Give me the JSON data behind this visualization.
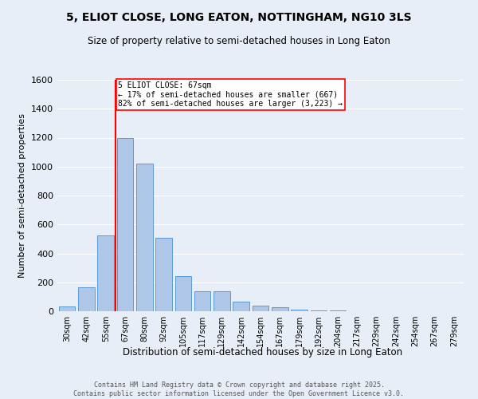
{
  "title": "5, ELIOT CLOSE, LONG EATON, NOTTINGHAM, NG10 3LS",
  "subtitle": "Size of property relative to semi-detached houses in Long Eaton",
  "xlabel": "Distribution of semi-detached houses by size in Long Eaton",
  "ylabel": "Number of semi-detached properties",
  "categories": [
    "30sqm",
    "42sqm",
    "55sqm",
    "67sqm",
    "80sqm",
    "92sqm",
    "105sqm",
    "117sqm",
    "129sqm",
    "142sqm",
    "154sqm",
    "167sqm",
    "179sqm",
    "192sqm",
    "204sqm",
    "217sqm",
    "229sqm",
    "242sqm",
    "254sqm",
    "267sqm",
    "279sqm"
  ],
  "values": [
    35,
    165,
    525,
    1200,
    1020,
    505,
    243,
    140,
    140,
    65,
    38,
    25,
    12,
    8,
    3,
    2,
    1,
    1,
    0,
    0,
    0
  ],
  "bar_color": "#aec6e8",
  "bar_edge_color": "#5b9bd5",
  "red_line_index": 3,
  "red_line_label": "5 ELIOT CLOSE: 67sqm",
  "annotation_line1": "← 17% of semi-detached houses are smaller (667)",
  "annotation_line2": "82% of semi-detached houses are larger (3,223) →",
  "ylim": [
    0,
    1600
  ],
  "yticks": [
    0,
    200,
    400,
    600,
    800,
    1000,
    1200,
    1400,
    1600
  ],
  "background_color": "#e8eef7",
  "grid_color": "#ffffff",
  "footer_line1": "Contains HM Land Registry data © Crown copyright and database right 2025.",
  "footer_line2": "Contains public sector information licensed under the Open Government Licence v3.0.",
  "title_fontsize": 10,
  "subtitle_fontsize": 9
}
